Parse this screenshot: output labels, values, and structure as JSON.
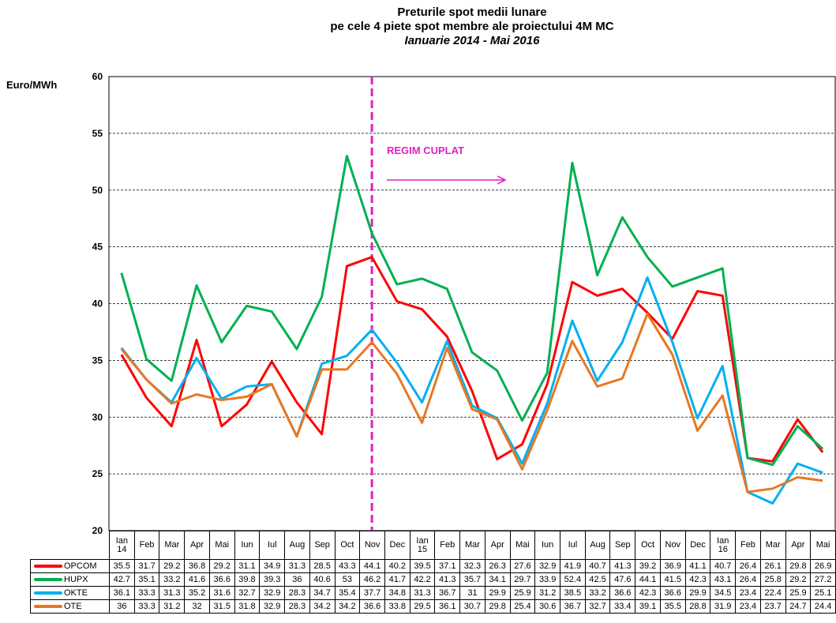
{
  "chart_data": {
    "type": "line",
    "title": "Preturile spot medii lunare",
    "subtitle": "pe cele 4 piete spot membre ale proiectului 4M MC",
    "period": "Ianuarie 2014 - Mai 2016",
    "y_label": "Euro/MWh",
    "annotation": "REGIM CUPLAT",
    "categories": [
      "Ian\n14",
      "Feb",
      "Mar",
      "Apr",
      "Mai",
      "Iun",
      "Iul",
      "Aug",
      "Sep",
      "Oct",
      "Nov",
      "Dec",
      "Ian\n15",
      "Feb",
      "Mar",
      "Apr",
      "Mai",
      "Iun",
      "Iul",
      "Aug",
      "Sep",
      "Oct",
      "Nov",
      "Dec",
      "Ian\n16",
      "Feb",
      "Mar",
      "Apr",
      "Mai"
    ],
    "series": [
      {
        "name": "OPCOM",
        "color": "#ff0000",
        "values": [
          35.5,
          31.7,
          29.2,
          36.8,
          29.2,
          31.1,
          34.9,
          31.3,
          28.5,
          43.3,
          44.1,
          40.2,
          39.5,
          37.1,
          32.3,
          26.3,
          27.6,
          32.9,
          41.9,
          40.7,
          41.3,
          39.2,
          36.9,
          41.1,
          40.7,
          26.4,
          26.1,
          29.8,
          26.9
        ]
      },
      {
        "name": "HUPX",
        "color": "#00b050",
        "values": [
          42.7,
          35.1,
          33.2,
          41.6,
          36.6,
          39.8,
          39.3,
          36,
          40.6,
          53,
          46.2,
          41.7,
          42.2,
          41.3,
          35.7,
          34.1,
          29.7,
          33.9,
          52.4,
          42.5,
          47.6,
          44.1,
          41.5,
          42.3,
          43.1,
          26.4,
          25.8,
          29.2,
          27.2
        ]
      },
      {
        "name": "OKTE",
        "color": "#00b0f0",
        "values": [
          36.1,
          33.3,
          31.3,
          35.2,
          31.6,
          32.7,
          32.9,
          28.3,
          34.7,
          35.4,
          37.7,
          34.8,
          31.3,
          36.7,
          31,
          29.9,
          25.9,
          31.2,
          38.5,
          33.2,
          36.6,
          42.3,
          36.6,
          29.9,
          34.5,
          23.4,
          22.4,
          25.9,
          25.1
        ]
      },
      {
        "name": "OTE",
        "color": "#e87722",
        "values": [
          36,
          33.3,
          31.2,
          32,
          31.5,
          31.8,
          32.9,
          28.3,
          34.2,
          34.2,
          36.6,
          33.8,
          29.5,
          36.1,
          30.7,
          29.8,
          25.4,
          30.6,
          36.7,
          32.7,
          33.4,
          39.1,
          35.5,
          28.8,
          31.9,
          23.4,
          23.7,
          24.7,
          24.4
        ]
      }
    ],
    "ylim": [
      20,
      60
    ],
    "yticks": [
      20,
      25,
      30,
      35,
      40,
      45,
      50,
      55,
      60
    ],
    "grid": true
  }
}
